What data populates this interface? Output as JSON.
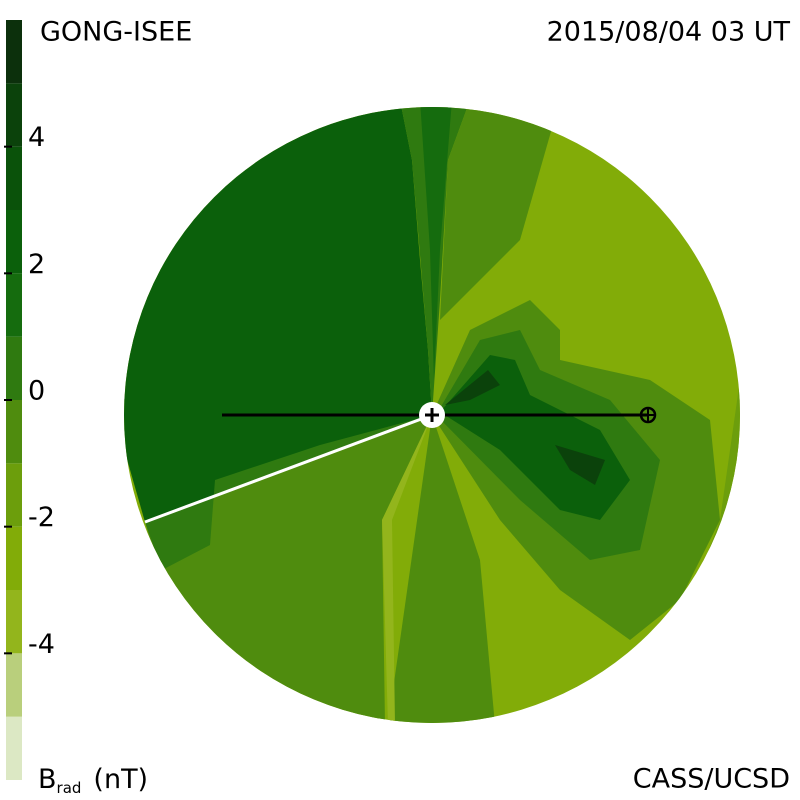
{
  "chart_data": {
    "type": "colorbar",
    "title": "GONG-ISEE",
    "subtitle": "2015/08/04 03 UT",
    "axis_label": {
      "symbol": "B",
      "subscript": "rad",
      "unit": "(nT)"
    },
    "credit": "CASS/UCSD",
    "bins": [
      -6,
      -5,
      -4,
      -3,
      -2,
      -1,
      0,
      1,
      2,
      3,
      4,
      5,
      6
    ],
    "colors": [
      "#dce8c4",
      "#b9cf7c",
      "#93b51c",
      "#82ac08",
      "#6c9e0c",
      "#4f8c0e",
      "#2f7a10",
      "#156c0e",
      "#0b600b",
      "#0a520a",
      "#0b420b",
      "#0c300c"
    ],
    "ylim": [
      -6,
      6
    ],
    "yticks": [
      -4,
      -2,
      0,
      2,
      4
    ]
  }
}
